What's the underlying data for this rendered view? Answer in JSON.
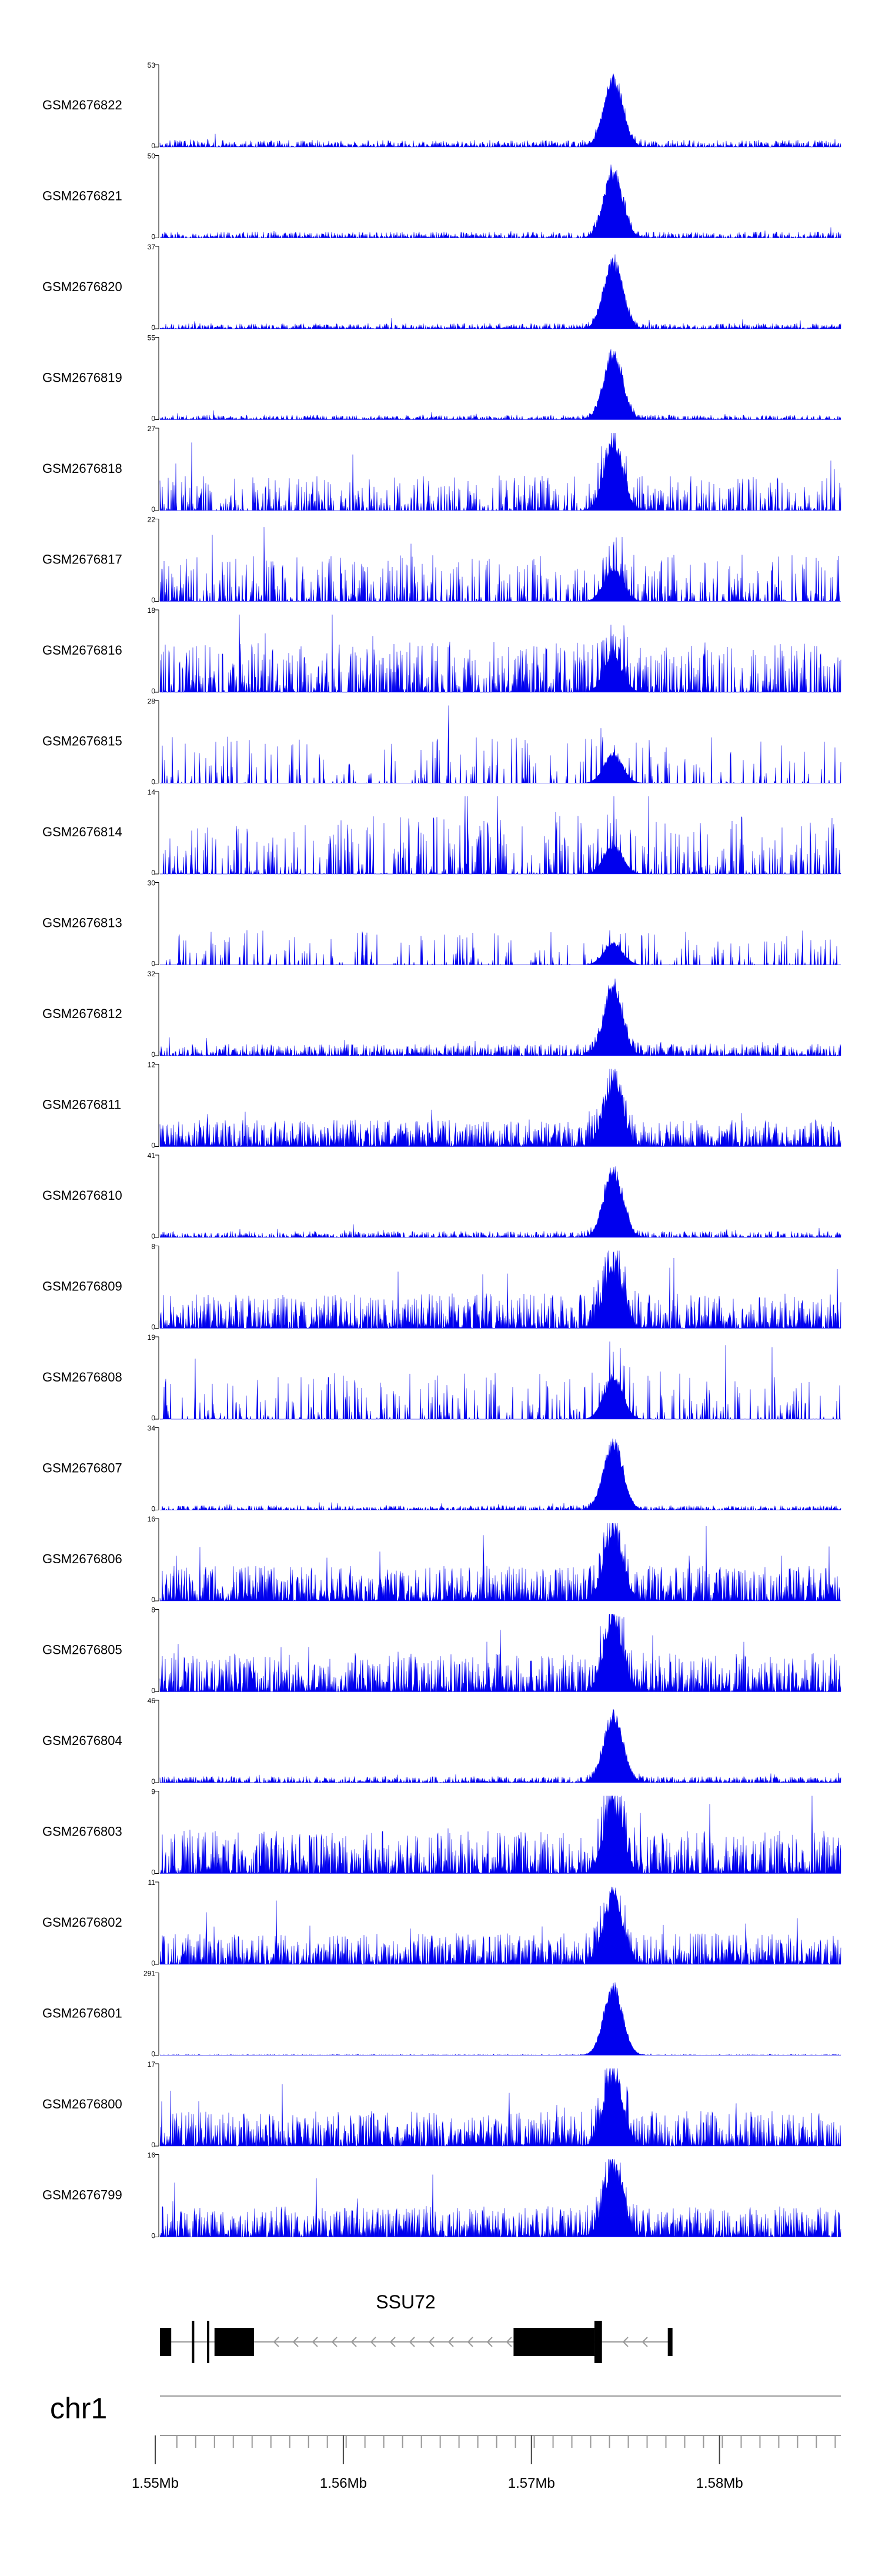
{
  "chart_data": {
    "type": "area",
    "title": "",
    "colors": {
      "signal": "#0000ee",
      "axis": "#000000",
      "gene": "#000000",
      "intron": "#999999"
    },
    "tracks": [
      {
        "name": "GSM2676822",
        "ymax": "53",
        "ymin": "0",
        "peak": 0.93,
        "noise": 0.09,
        "sparse": 0.08
      },
      {
        "name": "GSM2676821",
        "ymax": "50",
        "ymin": "0",
        "peak": 0.92,
        "noise": 0.08,
        "sparse": 0.08
      },
      {
        "name": "GSM2676820",
        "ymax": "37",
        "ymin": "0",
        "peak": 0.93,
        "noise": 0.07,
        "sparse": 0.08
      },
      {
        "name": "GSM2676819",
        "ymax": "55",
        "ymin": "0",
        "peak": 0.92,
        "noise": 0.06,
        "sparse": 0.07
      },
      {
        "name": "GSM2676818",
        "ymax": "27",
        "ymin": "0",
        "peak": 0.95,
        "noise": 0.45,
        "sparse": 0.45
      },
      {
        "name": "GSM2676817",
        "ymax": "22",
        "ymin": "0",
        "peak": 0.45,
        "noise": 0.6,
        "sparse": 0.5
      },
      {
        "name": "GSM2676816",
        "ymax": "18",
        "ymin": "0",
        "peak": 0.5,
        "noise": 0.65,
        "sparse": 0.4
      },
      {
        "name": "GSM2676815",
        "ymax": "28",
        "ymin": "0",
        "peak": 0.4,
        "noise": 0.6,
        "sparse": 0.8
      },
      {
        "name": "GSM2676814",
        "ymax": "14",
        "ymin": "0",
        "peak": 0.4,
        "noise": 0.75,
        "sparse": 0.6
      },
      {
        "name": "GSM2676813",
        "ymax": "30",
        "ymin": "0",
        "peak": 0.3,
        "noise": 0.45,
        "sparse": 0.75
      },
      {
        "name": "GSM2676812",
        "ymax": "32",
        "ymin": "0",
        "peak": 0.9,
        "noise": 0.15,
        "sparse": 0.1
      },
      {
        "name": "GSM2676811",
        "ymax": "12",
        "ymin": "0",
        "peak": 0.85,
        "noise": 0.35,
        "sparse": 0.05
      },
      {
        "name": "GSM2676810",
        "ymax": "41",
        "ymin": "0",
        "peak": 0.92,
        "noise": 0.08,
        "sparse": 0.1
      },
      {
        "name": "GSM2676809",
        "ymax": "8",
        "ymin": "0",
        "peak": 0.85,
        "noise": 0.45,
        "sparse": 0.1
      },
      {
        "name": "GSM2676808",
        "ymax": "19",
        "ymin": "0",
        "peak": 0.6,
        "noise": 0.6,
        "sparse": 0.7
      },
      {
        "name": "GSM2676807",
        "ymax": "34",
        "ymin": "0",
        "peak": 0.95,
        "noise": 0.06,
        "sparse": 0.1
      },
      {
        "name": "GSM2676806",
        "ymax": "16",
        "ymin": "0",
        "peak": 0.95,
        "noise": 0.45,
        "sparse": 0.05
      },
      {
        "name": "GSM2676805",
        "ymax": "8",
        "ymin": "0",
        "peak": 0.95,
        "noise": 0.5,
        "sparse": 0.1
      },
      {
        "name": "GSM2676804",
        "ymax": "46",
        "ymin": "0",
        "peak": 0.92,
        "noise": 0.08,
        "sparse": 0.1
      },
      {
        "name": "GSM2676803",
        "ymax": "9",
        "ymin": "0",
        "peak": 0.95,
        "noise": 0.55,
        "sparse": 0.05
      },
      {
        "name": "GSM2676802",
        "ymax": "11",
        "ymin": "0",
        "peak": 0.95,
        "noise": 0.4,
        "sparse": 0.05
      },
      {
        "name": "GSM2676801",
        "ymax": "291",
        "ymin": "0",
        "peak": 0.95,
        "noise": 0.01,
        "sparse": 0.05
      },
      {
        "name": "GSM2676800",
        "ymax": "17",
        "ymin": "0",
        "peak": 0.95,
        "noise": 0.45,
        "sparse": 0.05
      },
      {
        "name": "GSM2676799",
        "ymax": "16",
        "ymin": "0",
        "peak": 0.95,
        "noise": 0.4,
        "sparse": 0.05
      }
    ],
    "gene": {
      "name": "SSU72",
      "strand": "-",
      "start_mb": 1.5503,
      "end_mb": 1.5775,
      "exons": [
        [
          1.5503,
          1.5509,
          "utr"
        ],
        [
          1.552,
          1.5521,
          "line"
        ],
        [
          1.5528,
          1.5529,
          "line"
        ],
        [
          1.5532,
          1.5553,
          "cds"
        ],
        [
          1.5691,
          1.5734,
          "cds"
        ],
        [
          1.5734,
          1.5738,
          "line"
        ],
        [
          1.5773,
          1.5775,
          "utr"
        ]
      ]
    },
    "chromosome": "chr1",
    "x_range_mb": [
      1.5503,
      1.5865
    ],
    "ticks_mb": [
      1.5512,
      1.5522,
      1.5532,
      1.5542,
      1.5552,
      1.5562,
      1.5572,
      1.5582,
      1.5592,
      1.5602,
      1.5612,
      1.5622,
      1.5632,
      1.5642,
      1.5652,
      1.5662,
      1.5672,
      1.5682,
      1.5692,
      1.5702,
      1.5712,
      1.5722,
      1.5732,
      1.5742,
      1.5752,
      1.5762,
      1.5772,
      1.5782,
      1.5792,
      1.5802,
      1.5812,
      1.5822,
      1.5832,
      1.5842,
      1.5852,
      1.5862
    ],
    "major_ticks": [
      {
        "mb": 1.55,
        "label": "1.55Mb"
      },
      {
        "mb": 1.56,
        "label": "1.56Mb"
      },
      {
        "mb": 1.57,
        "label": "1.57Mb"
      },
      {
        "mb": 1.58,
        "label": "1.58Mb"
      }
    ],
    "peak_mb": 1.5744
  }
}
